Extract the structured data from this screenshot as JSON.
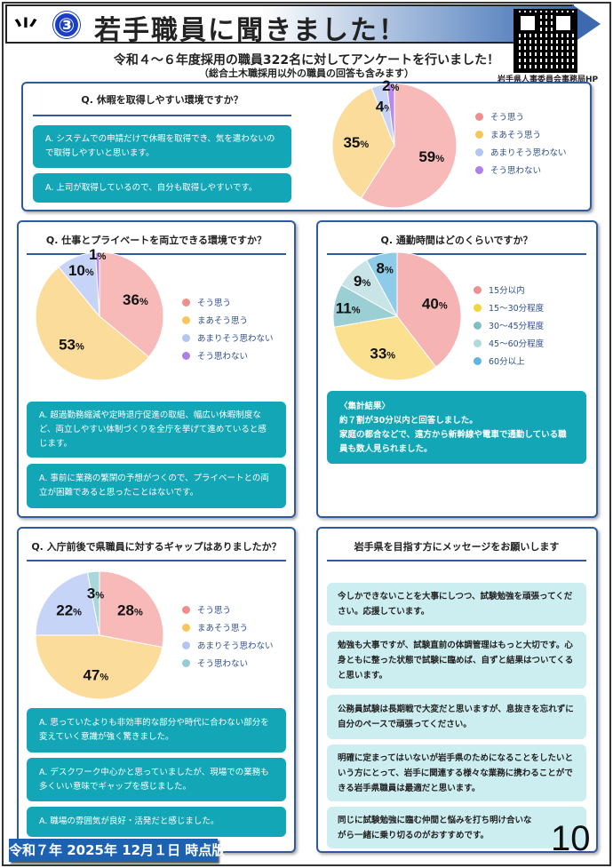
{
  "header": {
    "logo": "岩手県章",
    "number": "③",
    "title": "若手職員に聞きました！",
    "qr_caption": "岩手県人事委員会事務局HP"
  },
  "intro": {
    "line1": "令和４～６年度採用の職員322名に対してアンケートを行いました！",
    "line2": "（総合土木職採用以外の職員の回答も含みます）"
  },
  "sections": [
    {
      "question": "Q. 休暇を取得しやすい環境ですか？",
      "answers": [
        "A. システムでの申請だけで休暇を取得でき、気を遣わないので取得しやすいと思います。",
        "A. 上司が取得しているので、自分も取得しやすいです。"
      ]
    },
    {
      "question": "Q. 仕事とプライベートを両立できる環境ですか？",
      "answers": [
        "A. 超過勤務縮減や定時退庁促進の取組、幅広い休暇制度など、両立しやすい体制づくりを全庁を挙げて進めていると感じます。",
        "A. 事前に業務の繁閑の予想がつくので、プライベートとの両立が困難であると思ったことはないです。"
      ]
    },
    {
      "question": "Q. 通勤時間はどのくらいですか？",
      "result_title": "〈集計結果〉",
      "result_lines": [
        "約７割が30分以内と回答しました。",
        "家庭の都合などで、遠方から新幹線や電車で通勤している職員も数人見られました。"
      ]
    },
    {
      "question": "Q. 入庁前後で県職員に対するギャップはありましたか？",
      "answers": [
        "A. 思っていたよりも非効率的な部分や時代に合わない部分を変えていく意識が強く驚きました。",
        "A. デスクワーク中心かと思っていましたが、現場での業務も多くいい意味でギャップを感じました。",
        "A. 職場の雰囲気が良好・活発だと感じました。"
      ]
    },
    {
      "question": "岩手県を目指す方にメッセージをお願いします",
      "messages": [
        "今しかできないことを大事にしつつ、試験勉強を頑張ってください。応援しています。",
        "勉強も大事ですが、試験直前の体調管理はもっと大切です。心身ともに整った状態で試験に臨めば、自ずと結果はついてくると思います。",
        "公務員試験は長期戦で大変だと思いますが、息抜きを忘れずに自分のペースで頑張ってください。",
        "明確に定まってはいないが岩手県のためになることをしたいという方にとって、岩手に関連する様々な業務に携わることができる岩手県職員は最適だと思います。",
        "同じに試験勉強に臨む仲間と悩みを打ち明け合いながら一緒に乗り切るのがおすすめです。"
      ]
    }
  ],
  "chart_data": [
    {
      "type": "pie",
      "categories": [
        "そう思う",
        "まあそう思う",
        "あまりそう思わない",
        "そう思わない"
      ],
      "values": [
        59,
        35,
        4,
        2
      ],
      "colors": [
        "#f8b9b9",
        "#fbdc9a",
        "#c5d4f7",
        "#b98ae8"
      ],
      "legend_colors": [
        "#f08e8e",
        "#f5c65c",
        "#b3c6f2",
        "#b07fe6"
      ]
    },
    {
      "type": "pie",
      "categories": [
        "そう思う",
        "まあそう思う",
        "あまりそう思わない",
        "そう思わない"
      ],
      "values": [
        36,
        53,
        10,
        1
      ],
      "colors": [
        "#f8b9b9",
        "#fbdc9a",
        "#c5d4f7",
        "#b98ae8"
      ],
      "legend_colors": [
        "#f08e8e",
        "#f5c65c",
        "#b3c6f2",
        "#b07fe6"
      ]
    },
    {
      "type": "pie",
      "categories": [
        "15分以内",
        "15～30分程度",
        "30～45分程度",
        "45～60分程度",
        "60分以上"
      ],
      "values": [
        40,
        33,
        11,
        9,
        8
      ],
      "colors": [
        "#f6b3b3",
        "#fbe08f",
        "#9ccfd3",
        "#c8e4e7",
        "#8ecbe9"
      ],
      "legend_colors": [
        "#ef9090",
        "#f5d23a",
        "#7fbfc4",
        "#b0d9dc",
        "#5fb5e0"
      ]
    },
    {
      "type": "pie",
      "categories": [
        "そう思う",
        "まあそう思う",
        "あまりそう思わない",
        "そう思わない"
      ],
      "values": [
        28,
        47,
        22,
        3
      ],
      "colors": [
        "#f8b9b9",
        "#fbdc9a",
        "#c5d4f7",
        "#a8d8dc"
      ],
      "legend_colors": [
        "#f08e8e",
        "#f5c65c",
        "#b3c6f2",
        "#93cdd2"
      ]
    }
  ],
  "footer": {
    "date": "令和７年 2025年 12月１日 時点版",
    "page": "10"
  }
}
